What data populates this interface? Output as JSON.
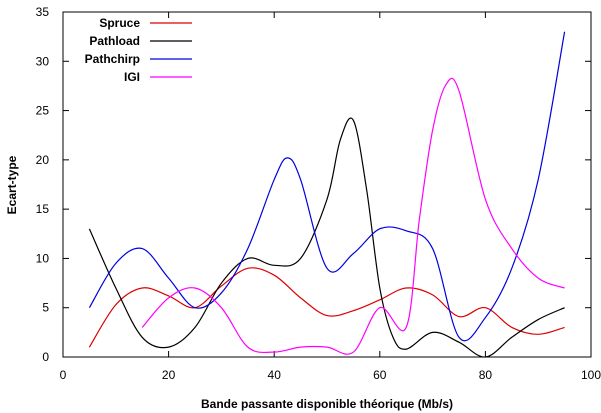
{
  "chart_data": {
    "type": "line",
    "title": "",
    "xlabel": "Bande passante disponible théorique (Mb/s)",
    "ylabel": "Ecart-type",
    "xlim": [
      0,
      100
    ],
    "ylim": [
      0,
      35
    ],
    "xticks": [
      "0",
      "20",
      "40",
      "60",
      "80",
      "100"
    ],
    "yticks": [
      "0",
      "5",
      "10",
      "15",
      "20",
      "25",
      "30",
      "35"
    ],
    "grid": false,
    "legend_position": "top-left",
    "series": [
      {
        "name": "Spruce",
        "color": "#dd0000",
        "x": [
          5,
          10,
          15,
          20,
          25,
          30,
          35,
          40,
          45,
          50,
          55,
          60,
          65,
          70,
          75,
          80,
          85,
          90,
          95
        ],
        "y": [
          1,
          5.3,
          7,
          6.2,
          5,
          7.2,
          9,
          8.3,
          6,
          4.2,
          4.7,
          5.8,
          7,
          6.3,
          4.1,
          5,
          3,
          2.3,
          3
        ]
      },
      {
        "name": "Pathload",
        "color": "#000000",
        "x": [
          5,
          10,
          15,
          20,
          25,
          30,
          35,
          40,
          45,
          50,
          52.5,
          55,
          57.5,
          60,
          62.5,
          65,
          70,
          75,
          80,
          85,
          90,
          95
        ],
        "y": [
          13,
          7,
          2,
          1,
          3,
          7.5,
          10,
          9.3,
          10,
          16,
          22,
          24,
          17,
          7,
          2,
          0.8,
          2.5,
          1.5,
          0,
          2,
          3.8,
          5
        ]
      },
      {
        "name": "Pathchirp",
        "color": "#0000dd",
        "x": [
          5,
          10,
          15,
          20,
          25,
          30,
          35,
          40,
          42.5,
          45,
          50,
          55,
          60,
          65,
          70,
          75,
          80,
          85,
          90,
          95
        ],
        "y": [
          5,
          9.5,
          11,
          8,
          5,
          6.5,
          11,
          18,
          20.2,
          18,
          9,
          10.5,
          13,
          12.8,
          11,
          2,
          4,
          9,
          18,
          33
        ]
      },
      {
        "name": "IGI",
        "color": "#ff00ff",
        "x": [
          15,
          20,
          25,
          30,
          35,
          40,
          45,
          50,
          55,
          60,
          65,
          67.5,
          70,
          72.5,
          75,
          80,
          85,
          90,
          95
        ],
        "y": [
          3,
          6,
          7,
          5,
          1,
          0.5,
          1,
          1,
          0.5,
          5,
          3,
          14,
          23,
          27.6,
          27,
          16,
          11,
          8,
          7
        ]
      }
    ]
  }
}
